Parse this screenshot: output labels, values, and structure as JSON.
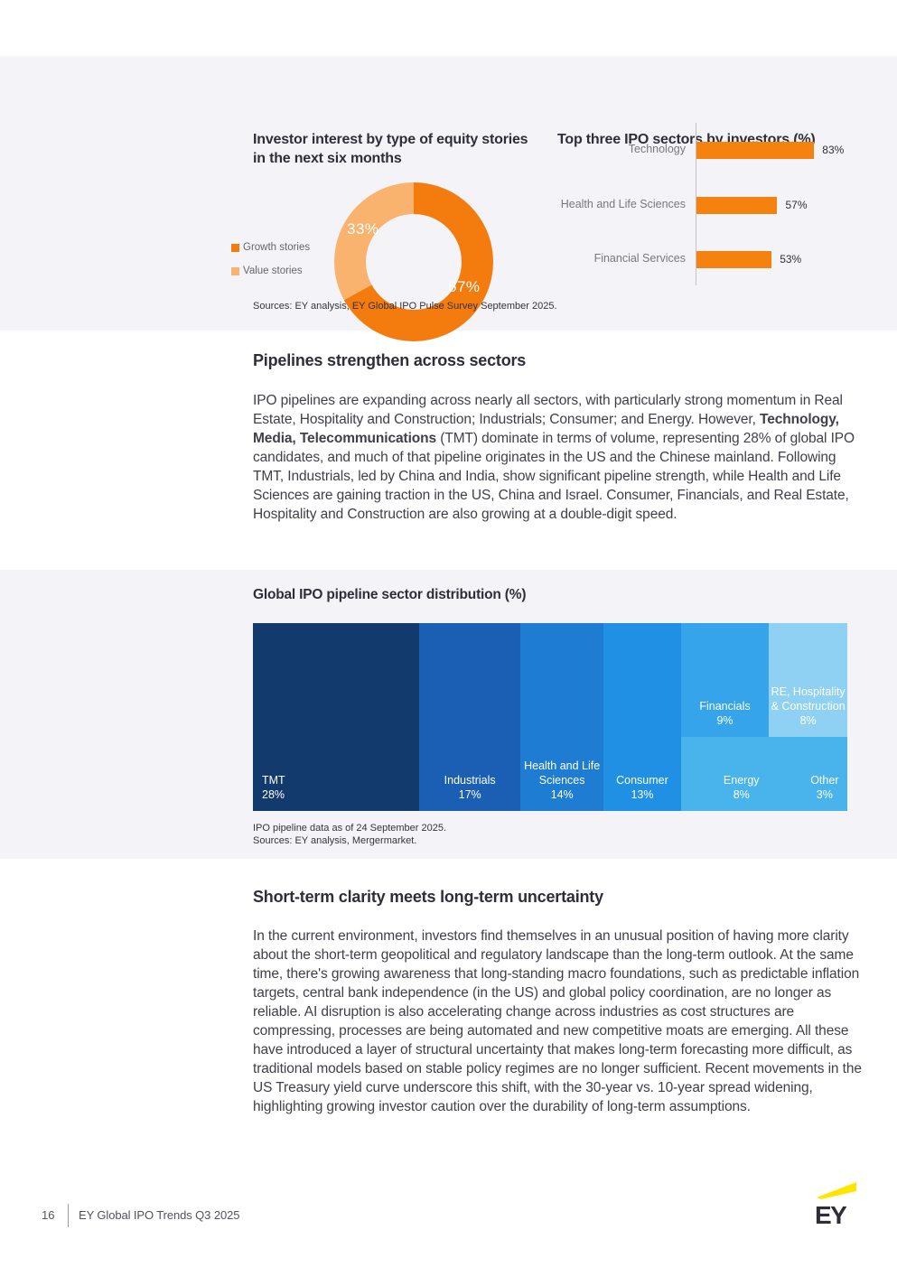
{
  "theme": {
    "panel_background": "#F4F4F8",
    "ink": "#2E2E38",
    "orange_dark": "#F47B0E",
    "orange_light": "#FAB36E",
    "bar_orange": "#F5820F",
    "ey_yellow": "#FFE600"
  },
  "charts_panel": {
    "donut_title": "Investor interest by type of equity stories in the next six months",
    "bar_title": "Top three IPO sectors by investors (%)",
    "legend": [
      {
        "label": "Growth stories",
        "color": "#F47B0E"
      },
      {
        "label": "Value stories",
        "color": "#FAB36E"
      }
    ],
    "source_note": "Sources: EY analysis, EY Global IPO Pulse Survey September 2025."
  },
  "section_pipelines": {
    "heading": "Pipelines strengthen across sectors",
    "paragraph_part1": "IPO pipelines are expanding across nearly all sectors, with particularly strong momentum in Real Estate, Hospitality and Construction; Industrials; Consumer; and Energy. However, ",
    "paragraph_bold": "Technology, Media, Telecommunications",
    "paragraph_part2": " (TMT) dominate in terms of volume, representing 28% of global IPO candidates, and much of that pipeline originates in the US and the Chinese mainland. Following TMT, Industrials, led by China and India, show significant pipeline strength, while Health and Life Sciences are gaining traction in the US, China and Israel. Consumer, Financials, and Real Estate, Hospitality and Construction are also growing at a double-digit speed."
  },
  "section_treemap": {
    "heading": "Global IPO pipeline sector distribution (%)",
    "note_line1": "IPO pipeline data as of 24 September 2025.",
    "note_line2": "Sources: EY analysis, Mergermarket."
  },
  "section_uncertainty": {
    "heading": "Short-term clarity meets long-term uncertainty",
    "paragraph": "In the current environment, investors find themselves in an unusual position of having more clarity about the short-term geopolitical and regulatory landscape than the long-term outlook. At the same time, there's growing awareness that long-standing macro foundations, such as predictable inflation targets, central bank independence (in the US) and global policy coordination, are no longer as reliable. AI disruption is also accelerating change across industries as cost structures are compressing, processes are being automated and new competitive moats are emerging. All these have introduced a layer of structural uncertainty that makes long-term forecasting more difficult, as traditional models based on stable policy regimes are no longer sufficient. Recent movements in the US Treasury yield curve underscore this shift, with the 30-year vs. 10-year spread widening, highlighting growing investor caution over the durability of long-term assumptions."
  },
  "footer": {
    "page_number": "16",
    "doc_title": "EY Global IPO Trends Q3 2025",
    "logo_text": "EY"
  },
  "chart_data": [
    {
      "type": "pie",
      "style": "donut",
      "title": "Investor interest by type of equity stories in the next six months",
      "labels": [
        "Growth stories",
        "Value stories"
      ],
      "values": [
        67,
        33
      ],
      "value_labels": [
        "67%",
        "33%"
      ],
      "unit": "%",
      "colors": [
        "#F47B0E",
        "#FAB36E"
      ],
      "legend_position": "left",
      "start_angle": "12 o'clock, clockwise"
    },
    {
      "type": "bar",
      "orientation": "horizontal",
      "title": "Top three IPO sectors by investors (%)",
      "categories": [
        "Technology",
        "Health and Life Sciences",
        "Financial Services"
      ],
      "values": [
        83,
        57,
        53
      ],
      "value_labels": [
        "83%",
        "57%",
        "53%"
      ],
      "unit": "%",
      "xlim": [
        0,
        100
      ],
      "bar_color": "#F5820F",
      "grid": false
    },
    {
      "type": "treemap",
      "title": "Global IPO pipeline sector distribution (%)",
      "unit": "%",
      "items": [
        {
          "label": "TMT",
          "value": 28,
          "value_label": "28%",
          "color": "#123A6C"
        },
        {
          "label": "Industrials",
          "value": 17,
          "value_label": "17%",
          "color": "#1B5FB4"
        },
        {
          "label": "Health and Life Sciences",
          "value": 14,
          "value_label": "14%",
          "color": "#1E7CD2"
        },
        {
          "label": "Consumer",
          "value": 13,
          "value_label": "13%",
          "color": "#2090E4"
        },
        {
          "label": "Financials",
          "value": 9,
          "value_label": "9%",
          "color": "#35A4EA"
        },
        {
          "label": "RE, Hospitality & Construction",
          "value": 8,
          "value_label": "8%",
          "color": "#8FD1F2"
        },
        {
          "label": "Energy",
          "value": 8,
          "value_label": "8%",
          "color": "#49B3EC"
        },
        {
          "label": "Other",
          "value": 3,
          "value_label": "3%",
          "color": "#49B3EC"
        }
      ]
    }
  ]
}
